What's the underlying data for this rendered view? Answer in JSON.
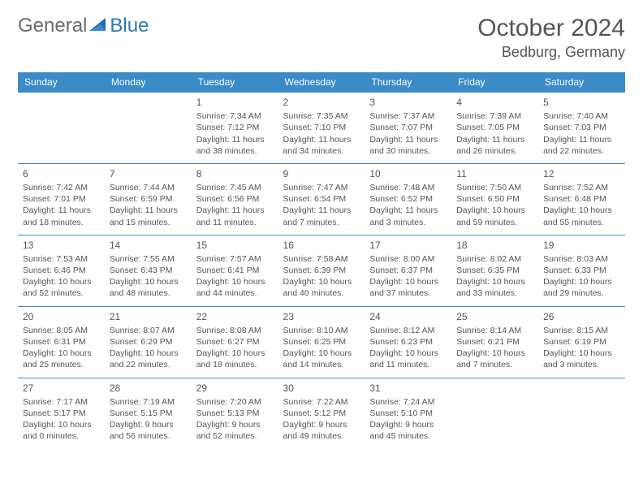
{
  "logo": {
    "general": "General",
    "blue": "Blue"
  },
  "title": "October 2024",
  "location": "Bedburg, Germany",
  "colors": {
    "header_bg": "#3b8bc8",
    "header_text": "#ffffff",
    "border": "#3b8bc8",
    "text": "#555555",
    "logo_gray": "#6b6b6b",
    "logo_blue": "#2a7ab9",
    "page_bg": "#ffffff"
  },
  "day_headers": [
    "Sunday",
    "Monday",
    "Tuesday",
    "Wednesday",
    "Thursday",
    "Friday",
    "Saturday"
  ],
  "weeks": [
    [
      null,
      null,
      {
        "n": "1",
        "sr": "Sunrise: 7:34 AM",
        "ss": "Sunset: 7:12 PM",
        "d1": "Daylight: 11 hours",
        "d2": "and 38 minutes."
      },
      {
        "n": "2",
        "sr": "Sunrise: 7:35 AM",
        "ss": "Sunset: 7:10 PM",
        "d1": "Daylight: 11 hours",
        "d2": "and 34 minutes."
      },
      {
        "n": "3",
        "sr": "Sunrise: 7:37 AM",
        "ss": "Sunset: 7:07 PM",
        "d1": "Daylight: 11 hours",
        "d2": "and 30 minutes."
      },
      {
        "n": "4",
        "sr": "Sunrise: 7:39 AM",
        "ss": "Sunset: 7:05 PM",
        "d1": "Daylight: 11 hours",
        "d2": "and 26 minutes."
      },
      {
        "n": "5",
        "sr": "Sunrise: 7:40 AM",
        "ss": "Sunset: 7:03 PM",
        "d1": "Daylight: 11 hours",
        "d2": "and 22 minutes."
      }
    ],
    [
      {
        "n": "6",
        "sr": "Sunrise: 7:42 AM",
        "ss": "Sunset: 7:01 PM",
        "d1": "Daylight: 11 hours",
        "d2": "and 18 minutes."
      },
      {
        "n": "7",
        "sr": "Sunrise: 7:44 AM",
        "ss": "Sunset: 6:59 PM",
        "d1": "Daylight: 11 hours",
        "d2": "and 15 minutes."
      },
      {
        "n": "8",
        "sr": "Sunrise: 7:45 AM",
        "ss": "Sunset: 6:56 PM",
        "d1": "Daylight: 11 hours",
        "d2": "and 11 minutes."
      },
      {
        "n": "9",
        "sr": "Sunrise: 7:47 AM",
        "ss": "Sunset: 6:54 PM",
        "d1": "Daylight: 11 hours",
        "d2": "and 7 minutes."
      },
      {
        "n": "10",
        "sr": "Sunrise: 7:48 AM",
        "ss": "Sunset: 6:52 PM",
        "d1": "Daylight: 11 hours",
        "d2": "and 3 minutes."
      },
      {
        "n": "11",
        "sr": "Sunrise: 7:50 AM",
        "ss": "Sunset: 6:50 PM",
        "d1": "Daylight: 10 hours",
        "d2": "and 59 minutes."
      },
      {
        "n": "12",
        "sr": "Sunrise: 7:52 AM",
        "ss": "Sunset: 6:48 PM",
        "d1": "Daylight: 10 hours",
        "d2": "and 55 minutes."
      }
    ],
    [
      {
        "n": "13",
        "sr": "Sunrise: 7:53 AM",
        "ss": "Sunset: 6:46 PM",
        "d1": "Daylight: 10 hours",
        "d2": "and 52 minutes."
      },
      {
        "n": "14",
        "sr": "Sunrise: 7:55 AM",
        "ss": "Sunset: 6:43 PM",
        "d1": "Daylight: 10 hours",
        "d2": "and 48 minutes."
      },
      {
        "n": "15",
        "sr": "Sunrise: 7:57 AM",
        "ss": "Sunset: 6:41 PM",
        "d1": "Daylight: 10 hours",
        "d2": "and 44 minutes."
      },
      {
        "n": "16",
        "sr": "Sunrise: 7:58 AM",
        "ss": "Sunset: 6:39 PM",
        "d1": "Daylight: 10 hours",
        "d2": "and 40 minutes."
      },
      {
        "n": "17",
        "sr": "Sunrise: 8:00 AM",
        "ss": "Sunset: 6:37 PM",
        "d1": "Daylight: 10 hours",
        "d2": "and 37 minutes."
      },
      {
        "n": "18",
        "sr": "Sunrise: 8:02 AM",
        "ss": "Sunset: 6:35 PM",
        "d1": "Daylight: 10 hours",
        "d2": "and 33 minutes."
      },
      {
        "n": "19",
        "sr": "Sunrise: 8:03 AM",
        "ss": "Sunset: 6:33 PM",
        "d1": "Daylight: 10 hours",
        "d2": "and 29 minutes."
      }
    ],
    [
      {
        "n": "20",
        "sr": "Sunrise: 8:05 AM",
        "ss": "Sunset: 6:31 PM",
        "d1": "Daylight: 10 hours",
        "d2": "and 25 minutes."
      },
      {
        "n": "21",
        "sr": "Sunrise: 8:07 AM",
        "ss": "Sunset: 6:29 PM",
        "d1": "Daylight: 10 hours",
        "d2": "and 22 minutes."
      },
      {
        "n": "22",
        "sr": "Sunrise: 8:08 AM",
        "ss": "Sunset: 6:27 PM",
        "d1": "Daylight: 10 hours",
        "d2": "and 18 minutes."
      },
      {
        "n": "23",
        "sr": "Sunrise: 8:10 AM",
        "ss": "Sunset: 6:25 PM",
        "d1": "Daylight: 10 hours",
        "d2": "and 14 minutes."
      },
      {
        "n": "24",
        "sr": "Sunrise: 8:12 AM",
        "ss": "Sunset: 6:23 PM",
        "d1": "Daylight: 10 hours",
        "d2": "and 11 minutes."
      },
      {
        "n": "25",
        "sr": "Sunrise: 8:14 AM",
        "ss": "Sunset: 6:21 PM",
        "d1": "Daylight: 10 hours",
        "d2": "and 7 minutes."
      },
      {
        "n": "26",
        "sr": "Sunrise: 8:15 AM",
        "ss": "Sunset: 6:19 PM",
        "d1": "Daylight: 10 hours",
        "d2": "and 3 minutes."
      }
    ],
    [
      {
        "n": "27",
        "sr": "Sunrise: 7:17 AM",
        "ss": "Sunset: 5:17 PM",
        "d1": "Daylight: 10 hours",
        "d2": "and 0 minutes."
      },
      {
        "n": "28",
        "sr": "Sunrise: 7:19 AM",
        "ss": "Sunset: 5:15 PM",
        "d1": "Daylight: 9 hours",
        "d2": "and 56 minutes."
      },
      {
        "n": "29",
        "sr": "Sunrise: 7:20 AM",
        "ss": "Sunset: 5:13 PM",
        "d1": "Daylight: 9 hours",
        "d2": "and 52 minutes."
      },
      {
        "n": "30",
        "sr": "Sunrise: 7:22 AM",
        "ss": "Sunset: 5:12 PM",
        "d1": "Daylight: 9 hours",
        "d2": "and 49 minutes."
      },
      {
        "n": "31",
        "sr": "Sunrise: 7:24 AM",
        "ss": "Sunset: 5:10 PM",
        "d1": "Daylight: 9 hours",
        "d2": "and 45 minutes."
      },
      null,
      null
    ]
  ]
}
